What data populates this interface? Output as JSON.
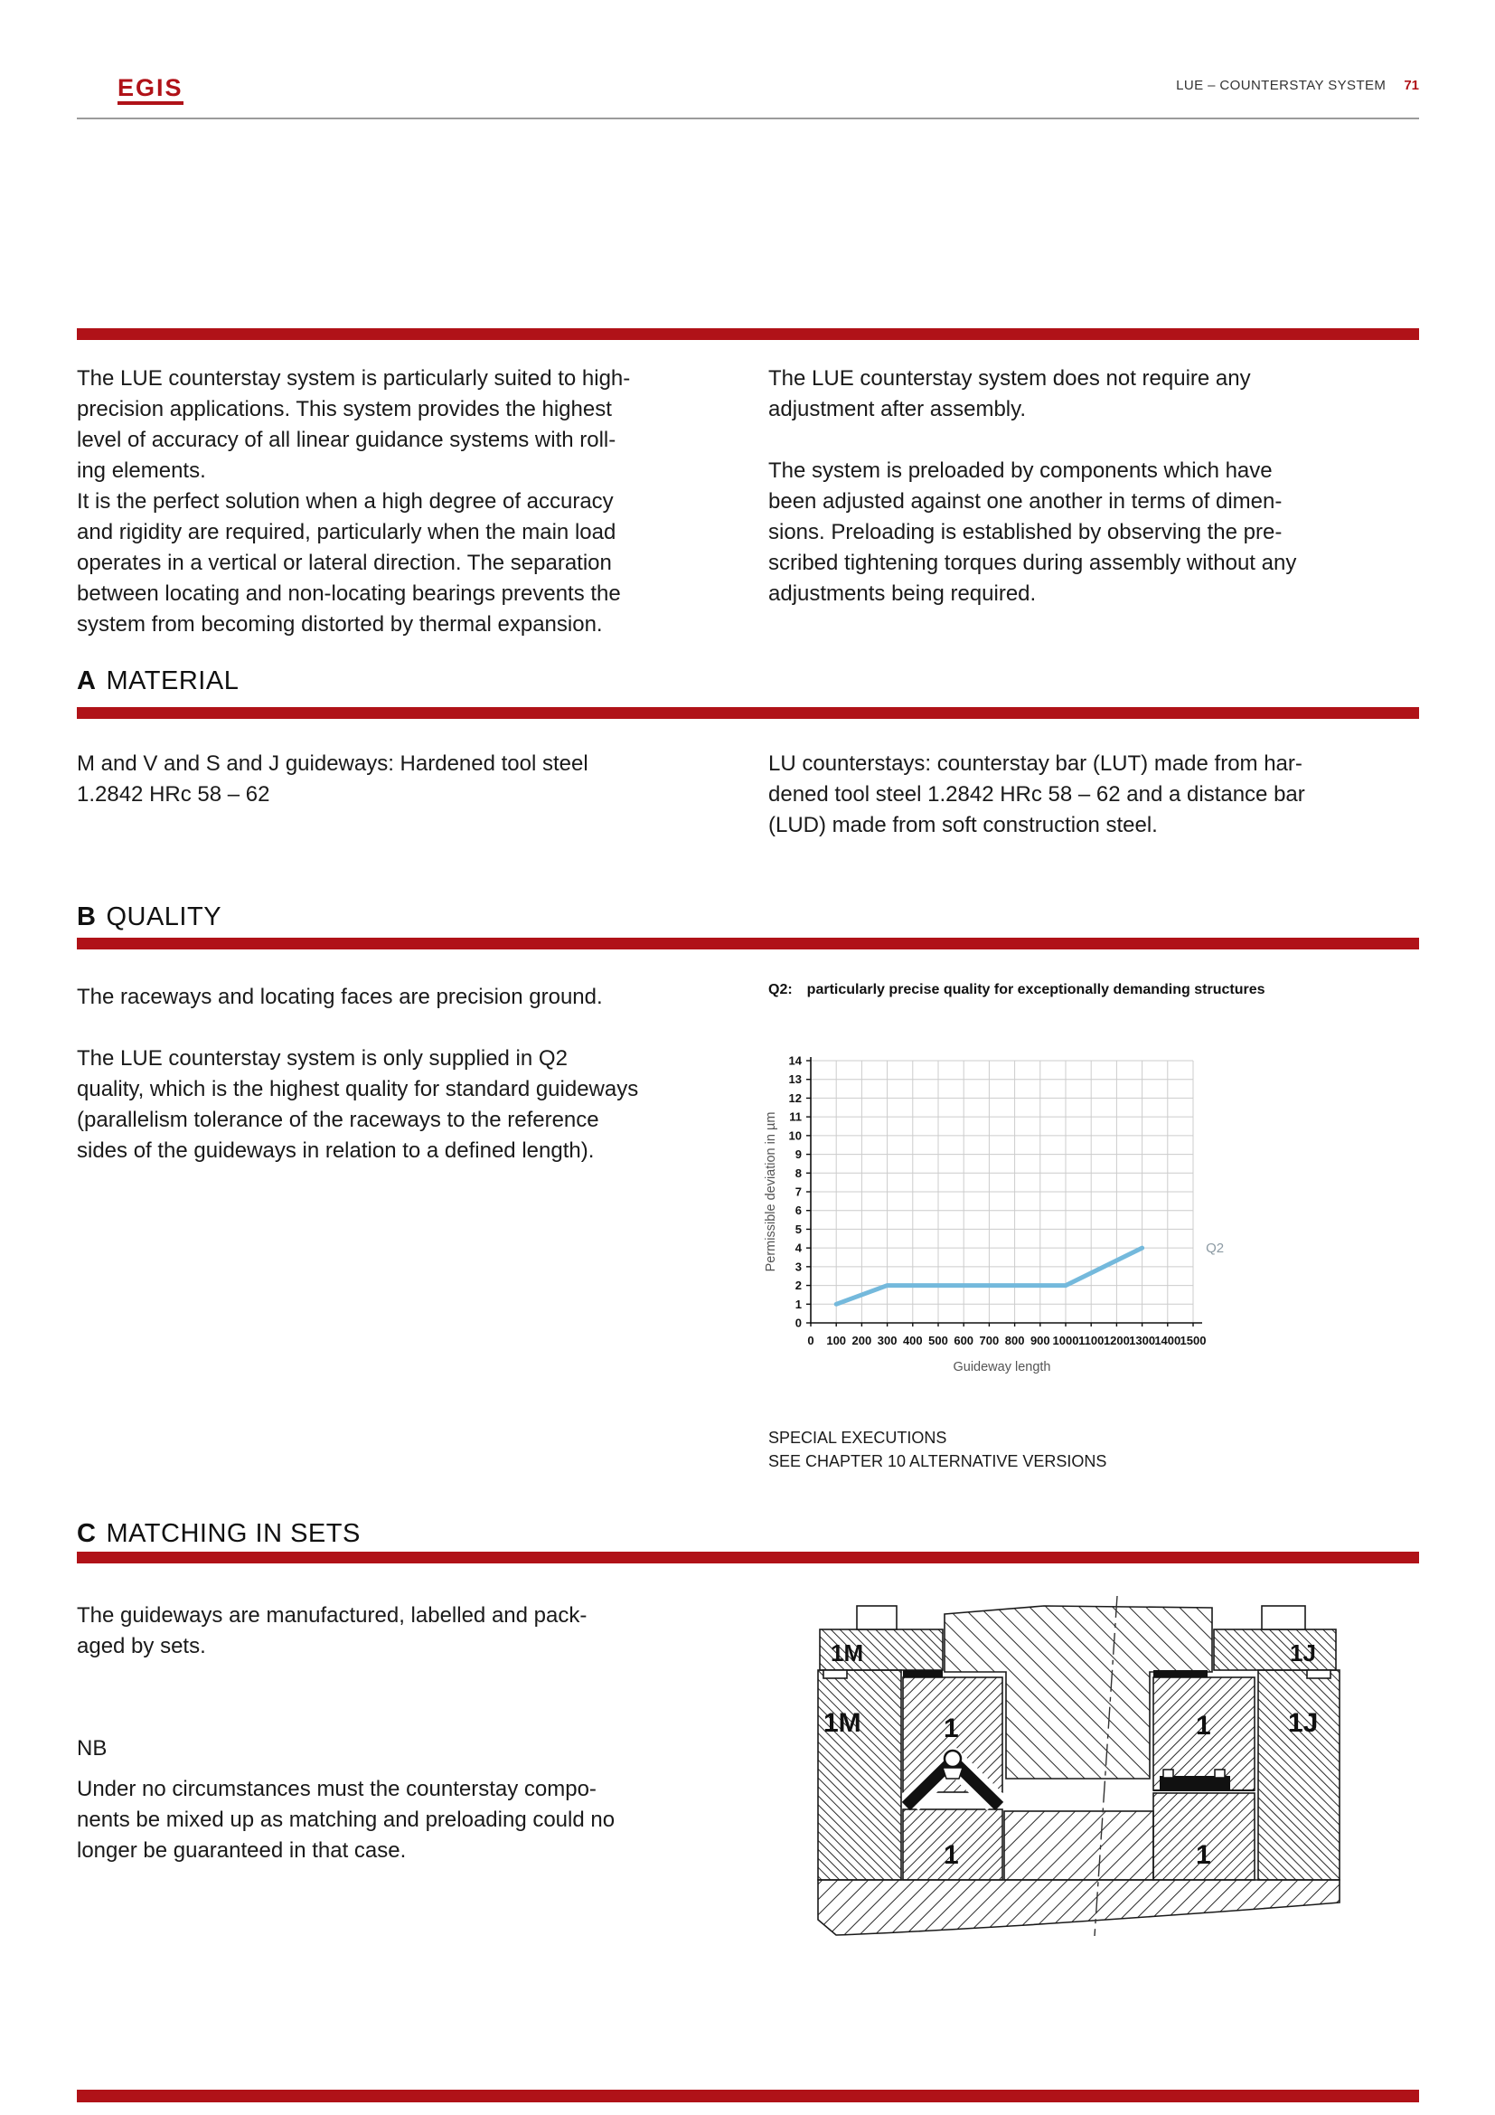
{
  "header": {
    "logo": "EGIS",
    "title": "LUE – COUNTERSTAY SYSTEM",
    "page_number": "71"
  },
  "colors": {
    "accent_red": "#b01218",
    "chart_line_blue": "#74b9dc"
  },
  "intro": {
    "left": "The LUE counterstay system is particularly suited to high-\nprecision applications. This system provides the highest\nlevel of accuracy of all linear guidance systems with roll-\ning elements.\nIt is the perfect solution when a high degree of accuracy\nand rigidity are required, particularly when the main load\noperates in a vertical or lateral direction. The separation\nbetween locating and non-locating bearings prevents the\nsystem from becoming distorted by thermal expansion.",
    "right": "The LUE counterstay system does not require any\nadjustment after assembly.\n\nThe system is preloaded by components which have\nbeen adjusted against one another in terms of dimen-\nsions. Preloading is established by observing the pre-\nscribed tightening torques during assembly without any\nadjustments being required."
  },
  "sections": {
    "material": {
      "letter": "A",
      "title": "MATERIAL",
      "left": "M and V and S and J guideways: Hardened tool steel\n1.2842 HRc 58 – 62",
      "right": "LU counterstays: counterstay bar (LUT) made from har-\ndened tool steel 1.2842 HRc 58 – 62 and a distance bar\n(LUD) made from soft construction steel."
    },
    "quality": {
      "letter": "B",
      "title": "QUALITY",
      "left": "The raceways and locating faces are precision ground.\n\nThe LUE counterstay system is only supplied in Q2\nquality, which is the highest quality for standard guideways\n(parallelism tolerance of the raceways to the reference\nsides of the guideways in relation to a defined length).",
      "chart_label": "Q2:",
      "chart_caption": "particularly precise quality for exceptionally demanding structures",
      "special_note": "SPECIAL EXECUTIONS\nSEE CHAPTER 10 ALTERNATIVE VERSIONS"
    },
    "matching": {
      "letter": "C",
      "title": "MATCHING IN SETS",
      "left": "The guideways are manufactured, labelled and pack-\naged by sets.",
      "nb_label": "NB",
      "nb_text": "Under no circumstances must the counterstay compo-\nnents be mixed up as matching and preloading could no\nlonger be guaranteed in that case."
    }
  },
  "chart_data": {
    "type": "line",
    "title": "Q2: particularly precise quality for exceptionally demanding structures",
    "xlabel": "Guideway length",
    "ylabel": "Permissible deviation in µm",
    "xlim": [
      0,
      1500
    ],
    "ylim": [
      0,
      14
    ],
    "x_ticks": [
      0,
      100,
      200,
      300,
      400,
      500,
      600,
      700,
      800,
      900,
      1000,
      1100,
      1200,
      1300,
      1400,
      1500
    ],
    "y_ticks": [
      0,
      1,
      2,
      3,
      4,
      5,
      6,
      7,
      8,
      9,
      10,
      11,
      12,
      13,
      14
    ],
    "grid": true,
    "legend_position": "right",
    "series": [
      {
        "name": "Q2",
        "x": [
          100,
          300,
          1000,
          1300
        ],
        "y": [
          1,
          2,
          2,
          4
        ],
        "color": "#74b9dc"
      }
    ],
    "annotation": {
      "text": "Q2",
      "x": 1550,
      "y": 4
    }
  },
  "diagram": {
    "label_clamp_left": "1M",
    "label_outer_left": "1M",
    "label_guide_top_left": "1",
    "label_guide_bottom_left": "1",
    "label_guide_top_right": "1",
    "label_guide_bottom_right": "1",
    "label_clamp_right": "1J",
    "label_outer_right": "1J"
  }
}
